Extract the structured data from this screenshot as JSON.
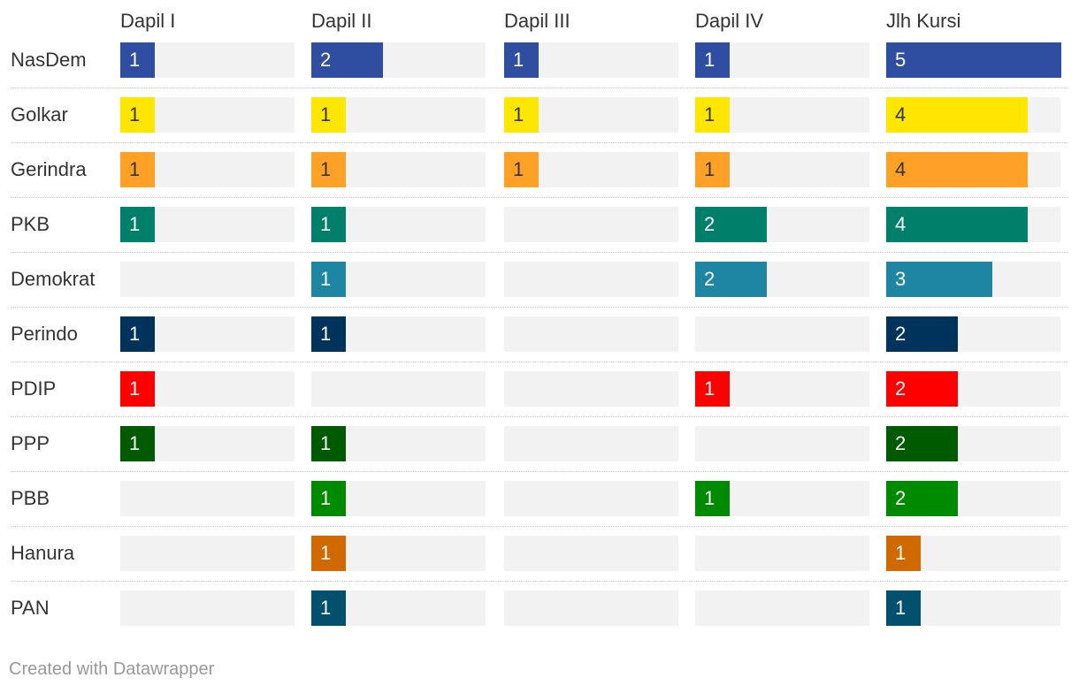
{
  "chart_data": {
    "type": "bar",
    "subtype": "small-multiple horizontal bars (table of bar columns)",
    "title": "",
    "columns": [
      "Dapil I",
      "Dapil II",
      "Dapil III",
      "Dapil IV",
      "Jlh Kursi"
    ],
    "categories": [
      "NasDem",
      "Golkar",
      "Gerindra",
      "PKB",
      "Demokrat",
      "Perindo",
      "PDIP",
      "PPP",
      "PBB",
      "Hanura",
      "PAN"
    ],
    "colors": {
      "NasDem": "#2f4ea1",
      "Golkar": "#ffe600",
      "Gerindra": "#ffa127",
      "PKB": "#00806a",
      "Demokrat": "#1e85a2",
      "Perindo": "#00335c",
      "PDIP": "#ff0000",
      "PPP": "#005a00",
      "PBB": "#008a00",
      "Hanura": "#d06a00",
      "PAN": "#00506e"
    },
    "label_dark_on": [
      "Golkar",
      "Gerindra"
    ],
    "values": [
      [
        1,
        2,
        1,
        1,
        5
      ],
      [
        1,
        1,
        1,
        1,
        4
      ],
      [
        1,
        1,
        1,
        1,
        4
      ],
      [
        1,
        1,
        null,
        2,
        4
      ],
      [
        null,
        1,
        null,
        2,
        3
      ],
      [
        1,
        1,
        null,
        null,
        2
      ],
      [
        1,
        null,
        null,
        1,
        2
      ],
      [
        1,
        1,
        null,
        null,
        2
      ],
      [
        null,
        1,
        null,
        1,
        2
      ],
      [
        null,
        1,
        null,
        null,
        1
      ],
      [
        null,
        1,
        null,
        null,
        1
      ]
    ],
    "max_per_column": [
      5,
      5,
      5,
      5,
      5
    ],
    "grid": false,
    "legend": "none"
  },
  "footer": {
    "credit": "Created with Datawrapper"
  }
}
